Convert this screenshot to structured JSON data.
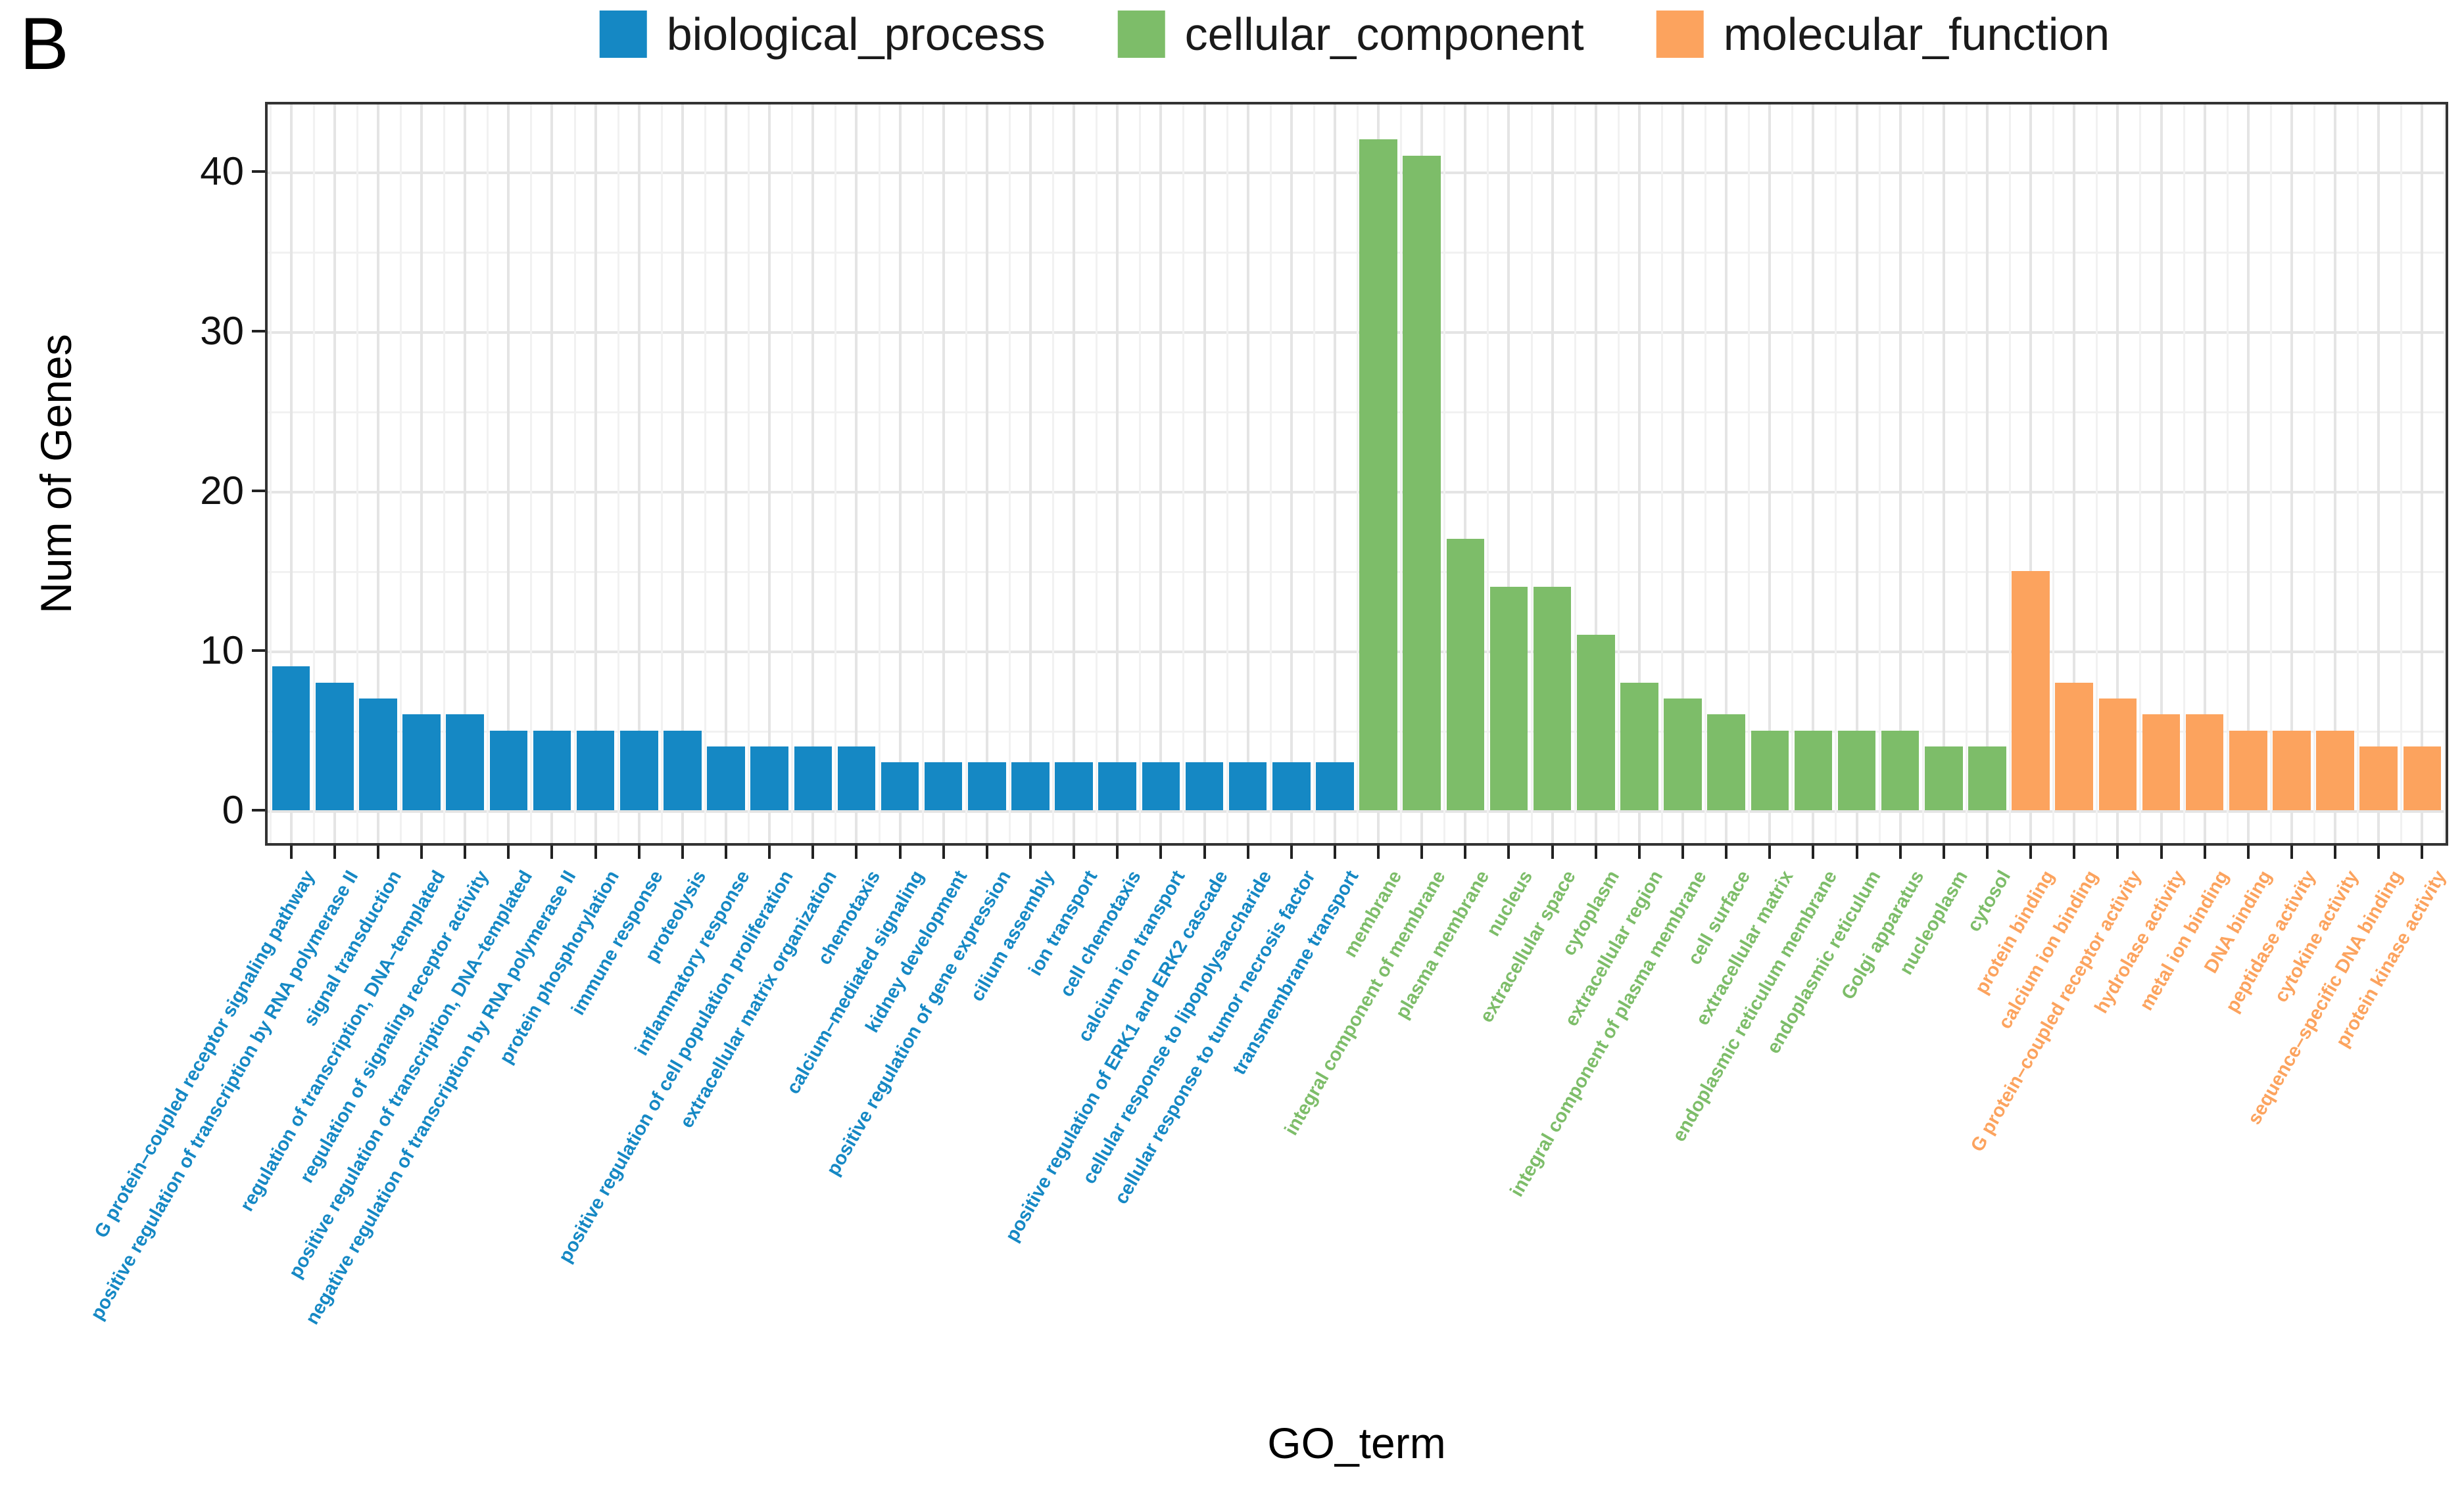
{
  "panel_label": "B",
  "legend": {
    "items": [
      {
        "label": "biological_process",
        "color": "#1588c4"
      },
      {
        "label": "cellular_component",
        "color": "#7dbd69"
      },
      {
        "label": "molecular_function",
        "color": "#fca35e"
      }
    ]
  },
  "axes": {
    "y_label": "Num of Genes",
    "x_label": "GO_term",
    "y_ticks": [
      0,
      10,
      20,
      30,
      40
    ]
  },
  "chart_data": {
    "type": "bar",
    "title": "",
    "xlabel": "GO_term",
    "ylabel": "Num of Genes",
    "ylim": [
      0,
      46
    ],
    "grid": "on",
    "legend_position": "top",
    "x_label_rotation_deg": 60,
    "groups": [
      {
        "name": "biological_process",
        "color": "#1588c4"
      },
      {
        "name": "cellular_component",
        "color": "#7dbd69"
      },
      {
        "name": "molecular_function",
        "color": "#fca35e"
      }
    ],
    "bars": [
      {
        "term": "G protein–coupled receptor signaling pathway",
        "group": "biological_process",
        "value": 9
      },
      {
        "term": "positive regulation of transcription by RNA polymerase II",
        "group": "biological_process",
        "value": 8
      },
      {
        "term": "signal transduction",
        "group": "biological_process",
        "value": 7
      },
      {
        "term": "regulation of transcription, DNA–templated",
        "group": "biological_process",
        "value": 6
      },
      {
        "term": "regulation of signaling receptor activity",
        "group": "biological_process",
        "value": 6
      },
      {
        "term": "positive regulation of transcription, DNA–templated",
        "group": "biological_process",
        "value": 5
      },
      {
        "term": "negative regulation of transcription by RNA polymerase II",
        "group": "biological_process",
        "value": 5
      },
      {
        "term": "protein phosphorylation",
        "group": "biological_process",
        "value": 5
      },
      {
        "term": "immune response",
        "group": "biological_process",
        "value": 5
      },
      {
        "term": "proteolysis",
        "group": "biological_process",
        "value": 5
      },
      {
        "term": "inflammatory response",
        "group": "biological_process",
        "value": 4
      },
      {
        "term": "positive regulation of cell population proliferation",
        "group": "biological_process",
        "value": 4
      },
      {
        "term": "extracellular matrix organization",
        "group": "biological_process",
        "value": 4
      },
      {
        "term": "chemotaxis",
        "group": "biological_process",
        "value": 4
      },
      {
        "term": "calcium–mediated signaling",
        "group": "biological_process",
        "value": 3
      },
      {
        "term": "kidney development",
        "group": "biological_process",
        "value": 3
      },
      {
        "term": "positive regulation of gene expression",
        "group": "biological_process",
        "value": 3
      },
      {
        "term": "cilium assembly",
        "group": "biological_process",
        "value": 3
      },
      {
        "term": "ion transport",
        "group": "biological_process",
        "value": 3
      },
      {
        "term": "cell chemotaxis",
        "group": "biological_process",
        "value": 3
      },
      {
        "term": "calcium ion transport",
        "group": "biological_process",
        "value": 3
      },
      {
        "term": "positive regulation of ERK1 and ERK2 cascade",
        "group": "biological_process",
        "value": 3
      },
      {
        "term": "cellular response to lipopolysaccharide",
        "group": "biological_process",
        "value": 3
      },
      {
        "term": "cellular response to tumor necrosis factor",
        "group": "biological_process",
        "value": 3
      },
      {
        "term": "transmembrane transport",
        "group": "biological_process",
        "value": 3
      },
      {
        "term": "membrane",
        "group": "cellular_component",
        "value": 42
      },
      {
        "term": "integral component of membrane",
        "group": "cellular_component",
        "value": 41
      },
      {
        "term": "plasma membrane",
        "group": "cellular_component",
        "value": 17
      },
      {
        "term": "nucleus",
        "group": "cellular_component",
        "value": 14
      },
      {
        "term": "extracellular space",
        "group": "cellular_component",
        "value": 14
      },
      {
        "term": "cytoplasm",
        "group": "cellular_component",
        "value": 11
      },
      {
        "term": "extracellular region",
        "group": "cellular_component",
        "value": 8
      },
      {
        "term": "integral component of plasma membrane",
        "group": "cellular_component",
        "value": 7
      },
      {
        "term": "cell surface",
        "group": "cellular_component",
        "value": 6
      },
      {
        "term": "extracellular matrix",
        "group": "cellular_component",
        "value": 5
      },
      {
        "term": "endoplasmic reticulum membrane",
        "group": "cellular_component",
        "value": 5
      },
      {
        "term": "endoplasmic reticulum",
        "group": "cellular_component",
        "value": 5
      },
      {
        "term": "Golgi apparatus",
        "group": "cellular_component",
        "value": 5
      },
      {
        "term": "nucleoplasm",
        "group": "cellular_component",
        "value": 4
      },
      {
        "term": "cytosol",
        "group": "cellular_component",
        "value": 4
      },
      {
        "term": "protein binding",
        "group": "molecular_function",
        "value": 15
      },
      {
        "term": "calcium ion binding",
        "group": "molecular_function",
        "value": 8
      },
      {
        "term": "G protein–coupled receptor activity",
        "group": "molecular_function",
        "value": 7
      },
      {
        "term": "hydrolase activity",
        "group": "molecular_function",
        "value": 6
      },
      {
        "term": "metal ion binding",
        "group": "molecular_function",
        "value": 6
      },
      {
        "term": "DNA binding",
        "group": "molecular_function",
        "value": 5
      },
      {
        "term": "peptidase activity",
        "group": "molecular_function",
        "value": 5
      },
      {
        "term": "cytokine activity",
        "group": "molecular_function",
        "value": 5
      },
      {
        "term": "sequence–specific DNA binding",
        "group": "molecular_function",
        "value": 4
      },
      {
        "term": "protein kinase activity",
        "group": "molecular_function",
        "value": 4
      }
    ]
  }
}
